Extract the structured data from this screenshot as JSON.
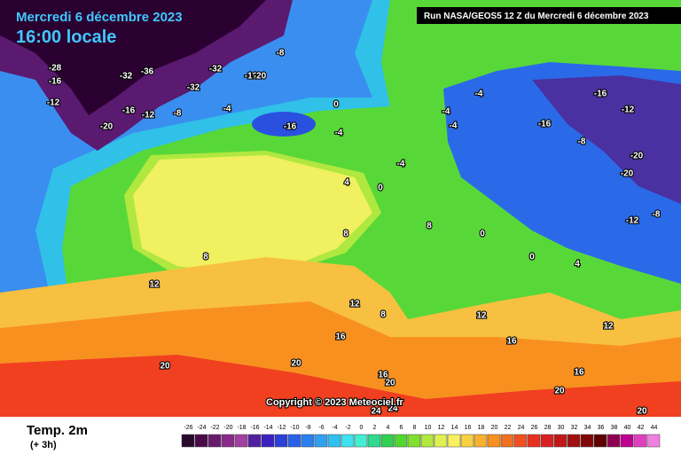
{
  "header": {
    "title": "Mercredi 6 décembre 2023",
    "time": "16:00 locale",
    "run": "Run NASA/GEOS5 12 Z du Mercredi 6 décembre 2023"
  },
  "copyright": "Copyright © 2023 Meteociel.fr",
  "legend": {
    "title": "Temp. 2m",
    "subtitle": "(+ 3h)",
    "ticks": [
      -26,
      -24,
      -22,
      -20,
      -18,
      -16,
      -14,
      -12,
      -10,
      -8,
      -6,
      -4,
      -2,
      0,
      2,
      4,
      6,
      8,
      10,
      12,
      14,
      16,
      18,
      20,
      22,
      24,
      26,
      28,
      30,
      32,
      34,
      36,
      38,
      40,
      42,
      44
    ],
    "colors": [
      "#2a0a2a",
      "#4a0a4a",
      "#6a1a6a",
      "#8a2a8a",
      "#a040a0",
      "#5020a0",
      "#3a20c0",
      "#2a40d8",
      "#2a60e8",
      "#2a80f0",
      "#30a0f0",
      "#30c0f0",
      "#40e0f0",
      "#40f0d0",
      "#30d890",
      "#30d050",
      "#50d830",
      "#80e030",
      "#b0e840",
      "#e0f050",
      "#f8f060",
      "#f8d040",
      "#f8b030",
      "#f89020",
      "#f07020",
      "#f05020",
      "#e83020",
      "#d82020",
      "#c01818",
      "#a01010",
      "#800808",
      "#600000",
      "#900050",
      "#c00090",
      "#e040c0",
      "#f080e0"
    ]
  },
  "map_labels": [
    -28,
    -16,
    -12,
    -32,
    -36,
    -32,
    -16,
    -20,
    -8,
    -32,
    -20,
    -16,
    -12,
    -8,
    -4,
    0,
    -16,
    -4,
    -4,
    -4,
    -4,
    -4,
    0,
    4,
    8,
    8,
    0,
    8,
    12,
    12,
    8,
    16,
    20,
    20,
    16,
    20,
    24,
    24,
    -16,
    -12,
    -16,
    -8,
    -20,
    -20,
    -12,
    -8,
    0,
    4,
    12,
    16,
    12,
    16,
    20,
    20
  ]
}
